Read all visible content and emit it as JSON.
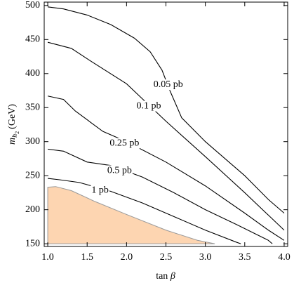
{
  "chart_data": {
    "type": "contour",
    "x_label": {
      "text": "tan",
      "symbol": "β"
    },
    "y_label": {
      "symbol": "m",
      "sub": "h",
      "subsub": "2",
      "unit": "(GeV)"
    },
    "xlim": [
      0.955,
      4.045
    ],
    "ylim": [
      146,
      505
    ],
    "xticks": [
      {
        "value": 1.0,
        "label": "1.0"
      },
      1.5,
      {
        "value": 2.0,
        "label": "2.0"
      },
      2.5,
      {
        "value": 3.0,
        "label": "3.0"
      },
      3.5,
      {
        "value": 4.0,
        "label": "4.0"
      }
    ],
    "yticks": [
      150,
      200,
      250,
      300,
      350,
      400,
      450,
      500
    ],
    "series": [
      {
        "name": "0.05 pb",
        "color": "#000000",
        "x": [
          1.0,
          1.2,
          1.5,
          1.8,
          2.1,
          2.3,
          2.45,
          2.55,
          2.7,
          3.0,
          3.3,
          3.5,
          3.8,
          4.0
        ],
        "values": [
          498,
          495,
          486,
          472,
          452,
          432,
          405,
          375,
          335,
          300,
          270,
          250,
          215,
          195
        ]
      },
      {
        "name": "0.1 pb",
        "color": "#000000",
        "x": [
          1.0,
          1.3,
          1.55,
          2.0,
          2.5,
          3.0,
          3.5,
          3.8,
          4.0
        ],
        "values": [
          446,
          437,
          418,
          385,
          330,
          278,
          225,
          192,
          170
        ]
      },
      {
        "name": "0.25 pb",
        "color": "#000000",
        "x": [
          1.0,
          1.2,
          1.35,
          1.7,
          2.0,
          2.5,
          3.0,
          3.5,
          3.8,
          4.0
        ],
        "values": [
          367,
          362,
          345,
          315,
          300,
          270,
          235,
          195,
          170,
          155
        ]
      },
      {
        "name": "0.5 pb",
        "color": "#000000",
        "x": [
          1.0,
          1.2,
          1.5,
          1.8,
          2.2,
          2.6,
          3.0,
          3.4,
          3.8,
          3.85
        ],
        "values": [
          289,
          286,
          270,
          265,
          248,
          225,
          200,
          178,
          155,
          150
        ]
      },
      {
        "name": "1 pb",
        "color": "#000000",
        "x": [
          1.0,
          1.15,
          1.4,
          1.8,
          2.2,
          2.6,
          3.0,
          3.4,
          3.45
        ],
        "values": [
          246,
          244,
          240,
          227,
          210,
          190,
          170,
          152,
          150
        ]
      }
    ],
    "region": {
      "color": "#fdd5b1",
      "x": [
        1.0,
        1.1,
        1.3,
        1.6,
        2.0,
        2.5,
        2.9,
        3.12
      ],
      "values": [
        233,
        234,
        228,
        212,
        193,
        170,
        155,
        150
      ]
    }
  }
}
